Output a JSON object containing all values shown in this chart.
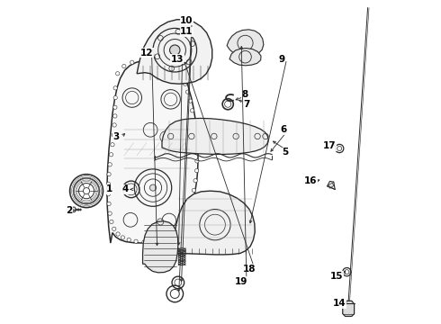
{
  "background_color": "#ffffff",
  "line_color": "#2a2a2a",
  "figsize": [
    4.9,
    3.6
  ],
  "dpi": 100,
  "labels_info": [
    [
      1,
      0.155,
      0.415,
      0.145,
      0.415
    ],
    [
      2,
      0.03,
      0.35,
      0.048,
      0.35
    ],
    [
      3,
      0.175,
      0.578,
      0.21,
      0.595
    ],
    [
      4,
      0.205,
      0.415,
      0.218,
      0.415
    ],
    [
      5,
      0.7,
      0.53,
      0.655,
      0.57
    ],
    [
      6,
      0.695,
      0.6,
      0.65,
      0.525
    ],
    [
      7,
      0.58,
      0.68,
      0.548,
      0.695
    ],
    [
      8,
      0.575,
      0.71,
      0.538,
      0.69
    ],
    [
      9,
      0.69,
      0.82,
      0.59,
      0.3
    ],
    [
      10,
      0.395,
      0.94,
      0.37,
      0.088
    ],
    [
      11,
      0.395,
      0.905,
      0.378,
      0.118
    ],
    [
      12,
      0.27,
      0.84,
      0.303,
      0.23
    ],
    [
      13,
      0.365,
      0.82,
      0.37,
      0.232
    ],
    [
      14,
      0.87,
      0.06,
      0.9,
      0.068
    ],
    [
      15,
      0.862,
      0.145,
      0.893,
      0.17
    ],
    [
      16,
      0.78,
      0.44,
      0.81,
      0.445
    ],
    [
      17,
      0.84,
      0.55,
      0.858,
      0.548
    ],
    [
      18,
      0.59,
      0.168,
      0.385,
      0.82
    ],
    [
      19,
      0.565,
      0.128,
      0.565,
      0.87
    ]
  ]
}
